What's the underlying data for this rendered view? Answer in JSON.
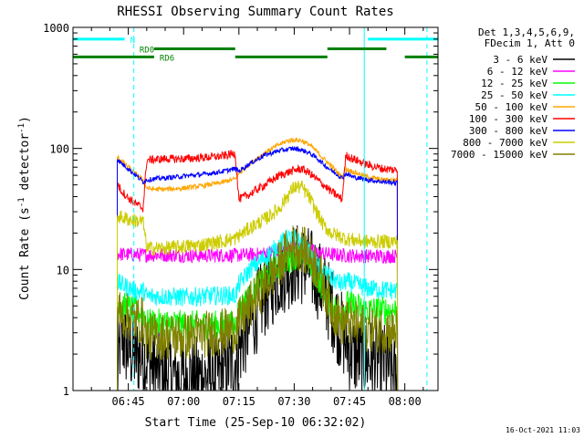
{
  "chart_data": {
    "type": "line",
    "title": "RHESSI Observing Summary Count Rates",
    "xlabel": "Start Time (25-Sep-10 06:32:02)",
    "ylabel_main": "Count Rate (s",
    "ylabel_sup1": "-1",
    "ylabel_mid": " detector",
    "ylabel_sup2": "-1",
    "ylabel_end": ")",
    "y_scale": "log",
    "ylim": [
      1,
      1000
    ],
    "xlim_minutes": [
      0,
      99
    ],
    "x_ticks": [
      {
        "t": 15,
        "label": "06:45"
      },
      {
        "t": 30,
        "label": "07:00"
      },
      {
        "t": 45,
        "label": "07:15"
      },
      {
        "t": 60,
        "label": "07:30"
      },
      {
        "t": 75,
        "label": "07:45"
      },
      {
        "t": 90,
        "label": "08:00"
      }
    ],
    "y_ticks": [
      {
        "v": 1,
        "label": "1"
      },
      {
        "v": 10,
        "label": "10"
      },
      {
        "v": 100,
        "label": "100"
      },
      {
        "v": 1000,
        "label": "1000"
      }
    ],
    "legend_header": [
      "Det 1,3,4,5,6,9,",
      "FDecim 1, Att 0"
    ],
    "legend_position": "right",
    "timestamp": "16-Oct-2021 11:03",
    "series": [
      {
        "name": "3 - 6 keV",
        "color": "#000000",
        "t": [
          12,
          13,
          14,
          15,
          17,
          18,
          20,
          22,
          25,
          28,
          32,
          36,
          40,
          44,
          46,
          48,
          52,
          56,
          60,
          63,
          66,
          70,
          72,
          74,
          76,
          78,
          80,
          82,
          84,
          86,
          88
        ],
        "y": [
          1.2,
          3.0,
          2.4,
          2.2,
          1.9,
          2.0,
          1.8,
          1.5,
          1.4,
          1.3,
          1.3,
          1.3,
          1.4,
          1.8,
          2.6,
          3.5,
          6,
          9,
          11,
          11,
          9,
          5,
          3.5,
          2.5,
          2.0,
          1.9,
          1.8,
          1.8,
          1.7,
          1.5,
          1.2
        ]
      },
      {
        "name": "6 - 12 keV",
        "color": "#ff00ff",
        "t": [
          12,
          13,
          15,
          20,
          25,
          30,
          35,
          40,
          45,
          50,
          55,
          58,
          60,
          62,
          64,
          66,
          70,
          75,
          80,
          85,
          88
        ],
        "y": [
          13.5,
          13.4,
          13.3,
          13.2,
          13.2,
          13.1,
          13.0,
          13.1,
          13.1,
          13.3,
          13.9,
          14.6,
          15,
          15,
          14.5,
          13.8,
          13.3,
          13.0,
          12.9,
          12.9,
          12.9
        ]
      },
      {
        "name": "12 - 25 keV",
        "color": "#00ff00",
        "t": [
          12,
          14,
          16,
          18,
          19,
          20,
          23,
          26,
          30,
          35,
          40,
          44,
          45,
          48,
          52,
          56,
          60,
          62,
          64,
          66,
          70,
          73,
          74,
          77,
          80,
          84,
          88
        ],
        "y": [
          5.2,
          4.9,
          4.7,
          4.4,
          4.5,
          3.6,
          3.6,
          3.6,
          3.5,
          3.5,
          3.5,
          3.5,
          4.7,
          6,
          8.5,
          11,
          13,
          13,
          11.5,
          9,
          5.2,
          4.2,
          5.2,
          4.9,
          4.6,
          4.6,
          4.6
        ]
      },
      {
        "name": "25 - 50 keV",
        "color": "#00ffff",
        "t": [
          12,
          14,
          16,
          18,
          19,
          20,
          25,
          30,
          35,
          40,
          44,
          45,
          48,
          52,
          56,
          58,
          60,
          62,
          64,
          66,
          70,
          73,
          74,
          77,
          80,
          84,
          88
        ],
        "y": [
          7.8,
          7.3,
          6.9,
          6.5,
          6.7,
          6.0,
          6.0,
          5.9,
          6.0,
          6.1,
          6.1,
          7.5,
          10,
          12.5,
          16,
          18,
          18,
          16.5,
          14,
          11,
          8.5,
          7.5,
          8.0,
          7.5,
          7.0,
          6.8,
          6.7
        ]
      },
      {
        "name": "50 - 100 keV",
        "color": "#ffa500",
        "t": [
          12,
          13,
          15,
          18,
          19,
          20,
          22,
          25,
          30,
          35,
          40,
          44,
          45,
          48,
          52,
          56,
          58,
          60,
          62,
          64,
          66,
          68,
          70,
          72,
          73,
          74,
          76,
          80,
          84,
          88
        ],
        "y": [
          85,
          80,
          70,
          58,
          55,
          47,
          46,
          46,
          47,
          49,
          52,
          56,
          62,
          75,
          92,
          108,
          115,
          118,
          116,
          108,
          95,
          82,
          72,
          62,
          58,
          68,
          64,
          58,
          55,
          55
        ]
      },
      {
        "name": "100 - 300 keV",
        "color": "#ff0000",
        "t": [
          12,
          13,
          15,
          17,
          19,
          20,
          22,
          25,
          30,
          35,
          40,
          44,
          45,
          48,
          52,
          56,
          60,
          62,
          64,
          66,
          68,
          70,
          72,
          73,
          74,
          76,
          80,
          84,
          88
        ],
        "y": [
          52,
          45,
          39,
          35,
          32,
          80,
          81,
          82,
          82,
          84,
          86,
          91,
          38,
          42,
          50,
          60,
          66,
          68,
          63,
          56,
          50,
          44,
          40,
          38,
          88,
          82,
          73,
          68,
          66
        ]
      },
      {
        "name": "300 - 800 keV",
        "color": "#0000ff",
        "t": [
          12,
          13,
          15,
          17,
          19,
          20,
          22,
          25,
          30,
          35,
          40,
          44,
          45,
          48,
          52,
          56,
          58,
          60,
          62,
          64,
          66,
          68,
          70,
          72,
          73,
          74,
          76,
          80,
          84,
          88
        ],
        "y": [
          82,
          76,
          68,
          60,
          53,
          55,
          56,
          57,
          59,
          61,
          64,
          68,
          65,
          75,
          88,
          96,
          98,
          100,
          97,
          92,
          84,
          74,
          66,
          60,
          57,
          62,
          58,
          55,
          53,
          52
        ]
      },
      {
        "name": "800 - 7000 keV",
        "color": "#cccc00",
        "t": [
          12,
          13,
          15,
          18,
          19,
          20,
          22,
          25,
          30,
          35,
          40,
          44,
          45,
          48,
          52,
          56,
          58,
          60,
          62,
          64,
          66,
          68,
          70,
          72,
          73,
          74,
          76,
          80,
          84,
          88
        ],
        "y": [
          28,
          27,
          26,
          25,
          25,
          15,
          15,
          15,
          15.5,
          16,
          17,
          18,
          19,
          22,
          26,
          32,
          40,
          48,
          48,
          40,
          30,
          23,
          20,
          19,
          18.5,
          18,
          17.5,
          17,
          17,
          17
        ]
      },
      {
        "name": "7000 - 15000 keV",
        "color": "#808000",
        "t": [
          12,
          13,
          15,
          18,
          19,
          20,
          25,
          30,
          35,
          40,
          44,
          45,
          48,
          52,
          56,
          58,
          60,
          62,
          64,
          66,
          68,
          70,
          72,
          73,
          74,
          76,
          80,
          84,
          88
        ],
        "y": [
          4.5,
          4.3,
          4.0,
          3.8,
          3.8,
          2.8,
          2.8,
          2.8,
          2.9,
          3.0,
          3.2,
          3.6,
          5,
          7.5,
          11,
          14,
          15.5,
          15,
          13,
          10.5,
          7.5,
          5,
          4.0,
          3.6,
          3.7,
          3.5,
          3.3,
          3.2,
          3.1
        ]
      }
    ],
    "flags": [
      {
        "name": "N",
        "color": "#00ffff",
        "level": 800,
        "segments": [
          [
            0,
            14
          ],
          [
            80,
            99
          ]
        ]
      },
      {
        "name": "RD0",
        "color": "#008000",
        "level": 665,
        "segments": [
          [
            22,
            44
          ],
          [
            69,
            85
          ]
        ]
      },
      {
        "name": "RD6",
        "color": "#008000",
        "level": 570,
        "segments": [
          [
            0,
            22
          ],
          [
            44,
            69
          ],
          [
            90,
            99
          ]
        ]
      }
    ],
    "vlines": [
      {
        "t": 0,
        "color": "#00ffff",
        "style": "solid"
      },
      {
        "t": 16.5,
        "color": "#00ffff",
        "style": "dashed"
      },
      {
        "t": 79,
        "color": "#00ffff",
        "style": "solid"
      },
      {
        "t": 96,
        "color": "#00ffff",
        "style": "dashed"
      }
    ]
  }
}
